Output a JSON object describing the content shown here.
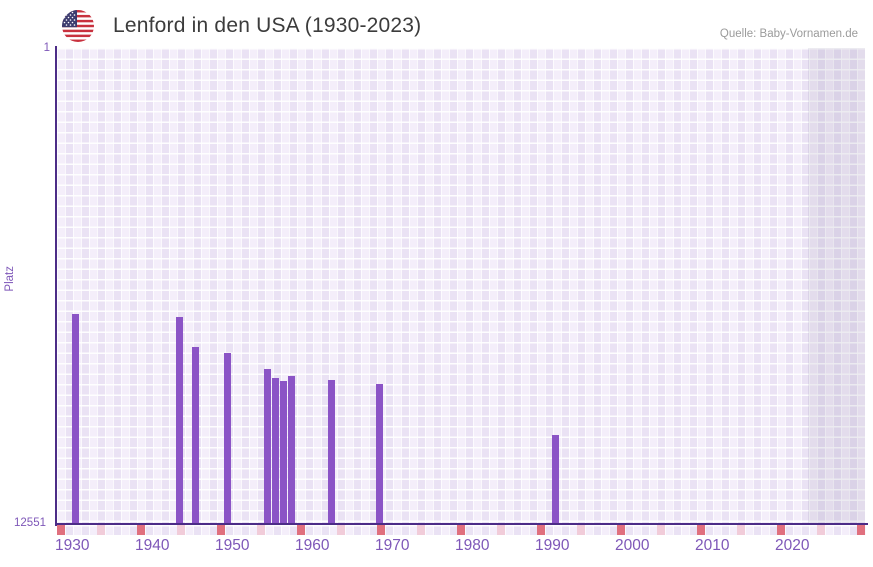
{
  "header": {
    "title": "Lenford in den USA (1930-2023)",
    "source": "Quelle: Baby-Vornamen.de",
    "flag_icon": "us-flag-icon"
  },
  "chart_data": {
    "type": "bar",
    "title": "Lenford in den USA (1930-2023)",
    "ylabel": "Platz",
    "y_axis": {
      "top_label": "1",
      "bottom_label": "12551",
      "min": 1,
      "max": 12551,
      "inverted": true
    },
    "x_axis": {
      "start_year": 1930,
      "end_year": 2023,
      "tick_years": [
        1930,
        1940,
        1950,
        1960,
        1970,
        1980,
        1990,
        2000,
        2010,
        2020
      ],
      "minor_tick_interval": 5
    },
    "points": [
      {
        "year": 1930,
        "platz": 7000
      },
      {
        "year": 1943,
        "platz": 7100
      },
      {
        "year": 1945,
        "platz": 7880
      },
      {
        "year": 1949,
        "platz": 8030
      },
      {
        "year": 1954,
        "platz": 8460
      },
      {
        "year": 1955,
        "platz": 8700
      },
      {
        "year": 1956,
        "platz": 8790
      },
      {
        "year": 1957,
        "platz": 8650
      },
      {
        "year": 1962,
        "platz": 8750
      },
      {
        "year": 1968,
        "platz": 8850
      },
      {
        "year": 1990,
        "platz": 10200
      }
    ],
    "legend": null,
    "grid": "checkered-lavender",
    "future_band_start_year": 2022,
    "colors": {
      "bar": "#8b54c6",
      "axis_line": "#4c2c87",
      "axis_label": "#7e57b8",
      "grid_light": "#f4eefa",
      "grid_dark": "#eae2f4",
      "decade_marker": "#e0707e",
      "half_decade_marker": "#f1ccd9",
      "title_text": "#3c3c3c",
      "source_text": "#9b9b9b"
    }
  }
}
